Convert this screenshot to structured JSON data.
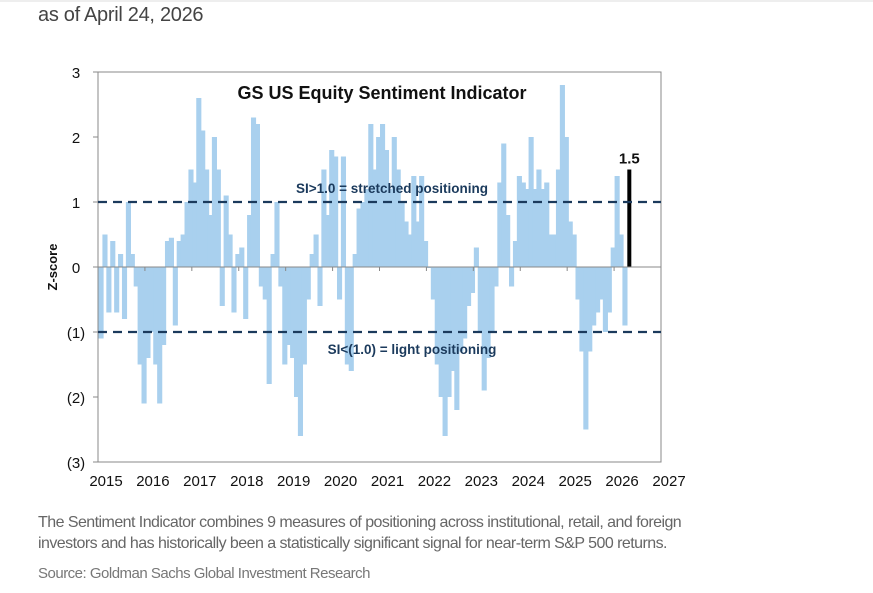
{
  "header": {
    "as_of": "as of April 24, 2026"
  },
  "caption": {
    "line1": "The Sentiment Indicator combines 9 measures of positioning across institutional, retail, and foreign",
    "line2": "investors and has historically been a statistically significant signal for near-term S&P 500 returns.",
    "source": "Source: Goldman Sachs Global Investment Research"
  },
  "chart_data": {
    "type": "bar",
    "title": "GS US Equity  Sentiment Indicator",
    "ylabel": "Z-score",
    "xlabel": "",
    "ylim": [
      -3,
      3
    ],
    "xlim": [
      2015,
      2027
    ],
    "y_ticks": [
      3,
      2,
      1,
      0,
      -1,
      -2,
      -3
    ],
    "y_tick_labels": [
      "3",
      "2",
      "1",
      "0",
      "(1)",
      "(2)",
      "(3)"
    ],
    "x_tick_labels": [
      "2015",
      "2016",
      "2017",
      "2018",
      "2019",
      "2020",
      "2021",
      "2022",
      "2023",
      "2024",
      "2025",
      "2026",
      "2027"
    ],
    "frequency": "monthly",
    "start": "2015-01",
    "bar_color": "#a9d0ee",
    "latest_color": "#000000",
    "values": [
      -1.1,
      0.5,
      -0.7,
      0.4,
      -0.7,
      0.2,
      -0.8,
      1.0,
      0.2,
      -0.3,
      -1.5,
      -2.1,
      -1.4,
      -1.0,
      -1.5,
      -2.1,
      -1.2,
      0.4,
      0.45,
      -0.9,
      0.4,
      0.5,
      1.0,
      1.5,
      1.3,
      2.6,
      2.1,
      1.5,
      0.8,
      2.0,
      1.5,
      -0.6,
      1.1,
      0.5,
      -0.7,
      0.2,
      0.3,
      -0.8,
      0.8,
      2.3,
      2.2,
      -0.3,
      -0.5,
      -1.8,
      0.2,
      1.0,
      -0.3,
      -1.5,
      -1.2,
      -1.4,
      -2.0,
      -2.6,
      -1.5,
      -0.5,
      0.2,
      0.5,
      -0.6,
      1.5,
      0.8,
      1.8,
      1.7,
      -0.5,
      1.7,
      -1.5,
      -1.6,
      0.2,
      0.9,
      1.0,
      1.2,
      2.2,
      1.5,
      2.0,
      2.2,
      1.8,
      1.2,
      2.0,
      1.5,
      1.0,
      0.7,
      0.5,
      1.4,
      0.7,
      1.4,
      0.4,
      0.0,
      -0.5,
      -1.5,
      -2.0,
      -2.6,
      -2.0,
      -1.6,
      -2.2,
      -1.3,
      -1.1,
      -0.6,
      -0.4,
      0.3,
      -1.0,
      -1.9,
      -1.4,
      -1.0,
      -0.3,
      1.3,
      1.9,
      0.8,
      -0.3,
      0.4,
      1.4,
      1.3,
      1.2,
      2.0,
      1.2,
      1.5,
      1.2,
      1.3,
      0.5,
      0.5,
      1.5,
      2.8,
      2.0,
      0.7,
      0.5,
      -0.5,
      -1.3,
      -2.5,
      -1.3,
      -0.9,
      -0.7,
      -0.5,
      -1.0,
      -0.7,
      0.3,
      1.4,
      0.5,
      -0.9,
      1.5
    ],
    "latest_label": "1.5",
    "thresholds": [
      {
        "value": 1.0,
        "label": "SI>1.0 = stretched positioning"
      },
      {
        "value": -1.0,
        "label": "SI<(1.0) = light positioning"
      }
    ],
    "grid": false,
    "legend": "none"
  }
}
